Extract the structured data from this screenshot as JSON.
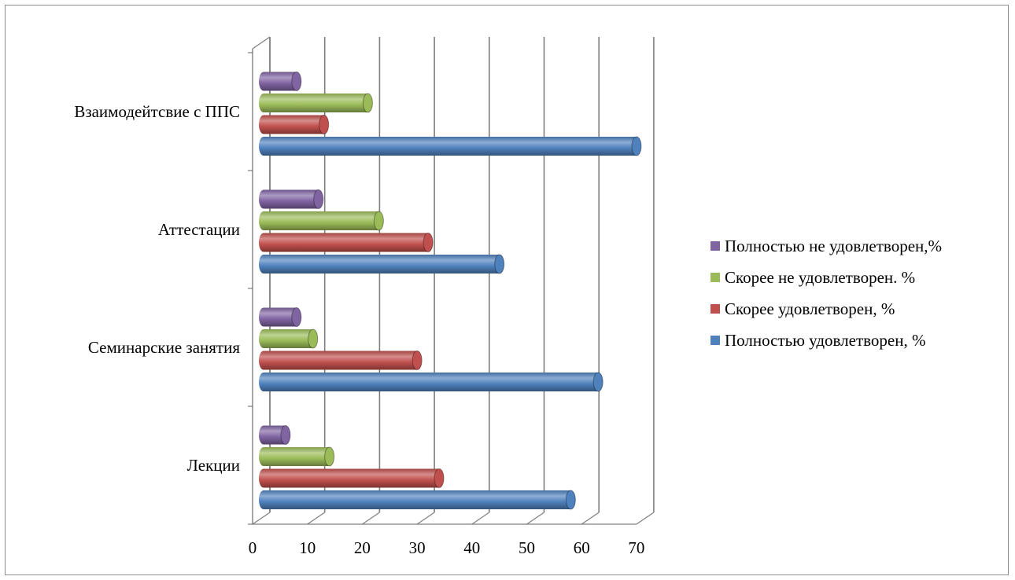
{
  "chart_data": {
    "type": "bar",
    "orientation": "horizontal",
    "three_d": true,
    "categories": [
      "Лекции",
      "Семинарские занятия",
      "Аттестации",
      "Взаимодейтсвие с ППС"
    ],
    "series": [
      {
        "name": "Полностью удовлетворен, %",
        "color": "#4f81bd",
        "values": [
          56,
          61,
          43,
          68
        ]
      },
      {
        "name": "Скорее удовлетворен, %",
        "color": "#c0504d",
        "values": [
          32,
          28,
          30,
          11
        ]
      },
      {
        "name": "Скорее не удовлетворен. %",
        "color": "#9bbb59",
        "values": [
          12,
          9,
          21,
          19
        ]
      },
      {
        "name": "Полностью не удовлетворен,%",
        "color": "#8064a2",
        "values": [
          4,
          6,
          10,
          6
        ]
      }
    ],
    "xlim": [
      0,
      70
    ],
    "x_ticks": [
      "0",
      "10",
      "20",
      "30",
      "40",
      "50",
      "60",
      "70"
    ],
    "grid": true,
    "legend_position": "right",
    "title": "",
    "xlabel": "",
    "ylabel": ""
  }
}
